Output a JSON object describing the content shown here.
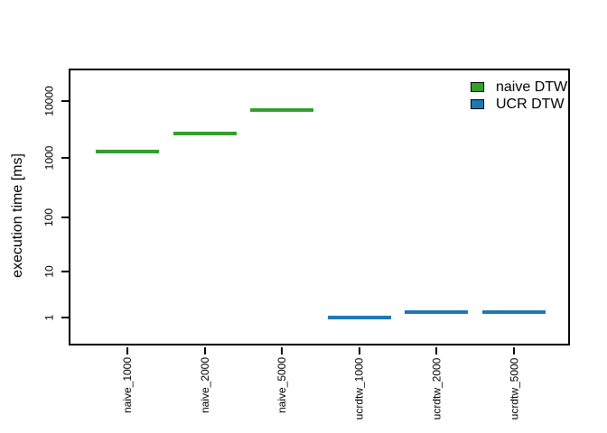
{
  "figure": {
    "background": "#ffffff",
    "axis_color": "#000000"
  },
  "chart_data": {
    "type": "boxplot",
    "title": "",
    "ylabel": "execution time [ms]",
    "xlabel": "",
    "y_scale": "log",
    "y_unit": "ms",
    "grid": "off",
    "categories": [
      "naive_1000",
      "naive_2000",
      "naive_5000",
      "ucrdtw_1000",
      "ucrdtw_2000",
      "ucrdtw_5000"
    ],
    "series": [
      {
        "name": "naive DTW",
        "color": "#33a02c",
        "median_ms": [
          1300,
          2700,
          6800,
          null,
          null,
          null
        ]
      },
      {
        "name": "UCR DTW",
        "color": "#1f78b4",
        "median_ms": [
          null,
          null,
          null,
          1.0,
          1.3,
          1.3
        ]
      }
    ],
    "y_ticks": [
      {
        "label": "1",
        "value": 1
      },
      {
        "label": "10",
        "value": 10
      },
      {
        "label": "100",
        "value": 100
      },
      {
        "label": "1000",
        "value": 1000
      },
      {
        "label": "10000",
        "value": 10000
      }
    ],
    "legend": {
      "position": "top-right",
      "entries": [
        "naive DTW",
        "UCR DTW"
      ]
    }
  }
}
